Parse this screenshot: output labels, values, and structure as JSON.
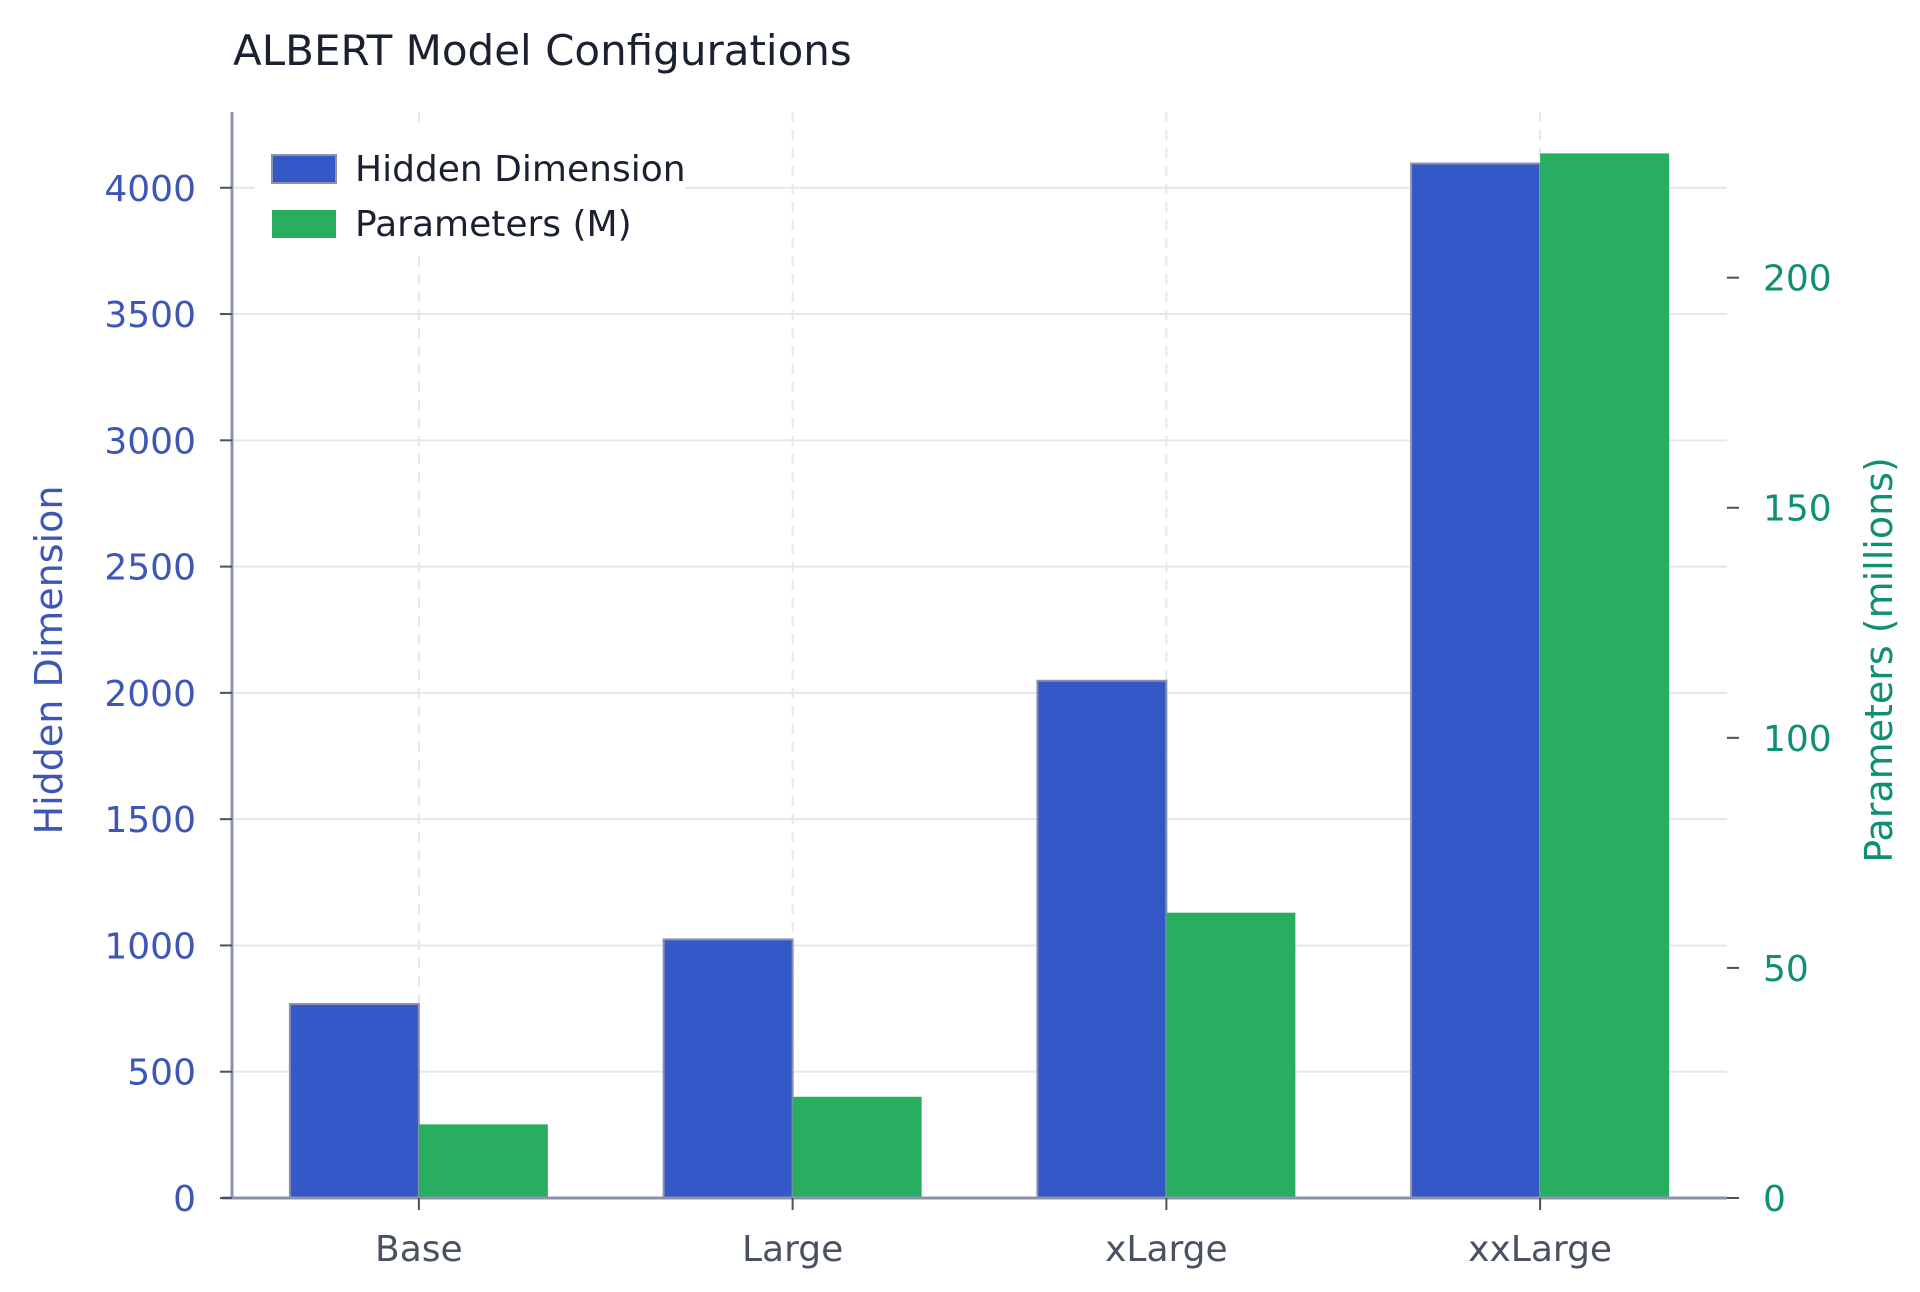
{
  "chart_data": {
    "type": "bar",
    "title": "ALBERT Model Configurations",
    "categories": [
      "Base",
      "Large",
      "xLarge",
      "xxLarge"
    ],
    "series": [
      {
        "name": "Hidden Dimension",
        "axis": "left",
        "color": "#3558c8",
        "values": [
          768,
          1024,
          2048,
          4096
        ]
      },
      {
        "name": "Parameters (M)",
        "axis": "right",
        "color": "#27ae60",
        "values": [
          16,
          22,
          62,
          227
        ]
      }
    ],
    "ylabel_left": "Hidden Dimension",
    "ylabel_right": "Parameters (millions)",
    "ylim_left": [
      0,
      4300
    ],
    "ylim_right": [
      0,
      236
    ],
    "yticks_left": [
      0,
      500,
      1000,
      1500,
      2000,
      2500,
      3000,
      3500,
      4000
    ],
    "yticks_right": [
      0,
      50,
      100,
      150,
      200
    ],
    "grid": true,
    "legend_position": "top-left"
  }
}
